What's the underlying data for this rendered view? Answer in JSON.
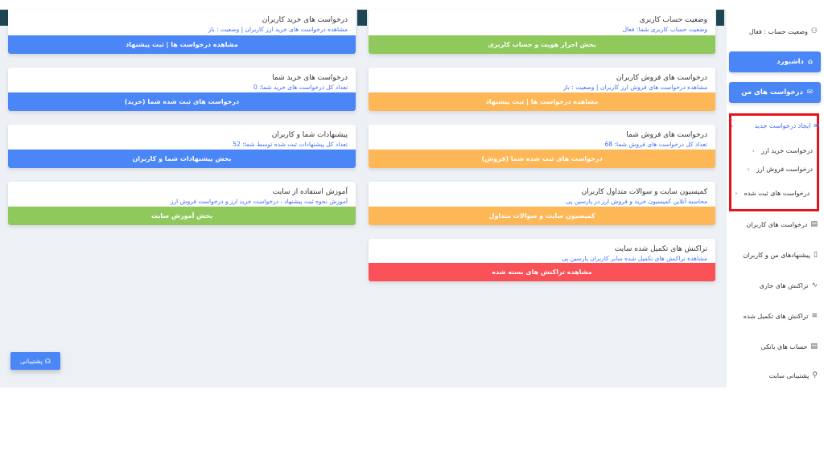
{
  "sidebar": {
    "account_status": "وضعیت حساب : فعال",
    "dashboard": "داشبورد",
    "my_requests": "درخواست های من",
    "new_request": "ایجاد درخواست جدید",
    "buy_request": "درخواست خرید ارز",
    "sell_request": "درخواست فروش ارز",
    "registered_requests": "درخواست های ثبت شده",
    "items": [
      {
        "label": "درخواست های کاربران",
        "icon": "document-icon"
      },
      {
        "label": "پیشنهادهای من و کاربران",
        "icon": "file-icon"
      },
      {
        "label": "تراکنش های جاری",
        "icon": "activity-icon"
      },
      {
        "label": "تراکنش های تکمیل شده",
        "icon": "list-icon"
      },
      {
        "label": "حساب های بانکی",
        "icon": "bank-icon"
      },
      {
        "label": "پشتیبانی سایت",
        "icon": "user-icon"
      }
    ]
  },
  "cards_right": [
    {
      "title": "وضعیت حساب کاربری",
      "subtitle": "وضعیت حساب کاربری شما: فعال",
      "button": "بخش احراز هویت و حساب کاربری",
      "color": "#8fc95b"
    },
    {
      "title": "درخواست های فروش کاربران",
      "subtitle": "مشاهده درخواست های فروش ارز کاربران | وضعیت : باز",
      "button": "مشاهده درخواست ها | ثبت پیشنهاد",
      "color": "#fdb756"
    },
    {
      "title": "درخواست های فروش شما",
      "subtitle": "تعداد کل درخواست های فروش شما: 68",
      "button": "درخواست های ثبت شده شما (فروش)",
      "color": "#fdb756"
    },
    {
      "title": "کمیسیون سایت و سوالات متداول کاربران",
      "subtitle": "محاسبه آنلاین کمیسیون خرید و فروش ارز در پارسین پی",
      "button": "کمیسیون سایت و سوالات متداول",
      "color": "#fdb756"
    },
    {
      "title": "تراکنش های تکمیل شده سایت",
      "subtitle": "مشاهده تراکنش های تکمیل شده سایر کاربران پارسین پی",
      "button": "مشاهده تراکنش های بسته شده",
      "color": "#fa5057"
    }
  ],
  "cards_left": [
    {
      "title": "درخواست های خرید کاربران",
      "subtitle": "مشاهده درخواست های خرید ارز کاربران | وضعیت : باز",
      "button": "مشاهده درخواست ها | ثبت پیشنهاد",
      "color": "#4b86f7"
    },
    {
      "title": "درخواست های خرید شما",
      "subtitle": "تعداد کل درخواست های خرید شما: 0",
      "button": "درخواست های ثبت شده شما (خرید)",
      "color": "#4b86f7"
    },
    {
      "title": "پیشنهادات شما و کاربران",
      "subtitle": "تعداد کل پیشنهادات ثبت شده توسط شما: 52",
      "button": "بخش پیشنهادات شما و کاربران",
      "color": "#4b86f7"
    },
    {
      "title": "آموزش استفاده از سایت",
      "subtitle": "آموزش نحوه ثبت پیشنهاد ، درخواست خرید ارز و درخواست فروش ارز",
      "button": "بخش آموزش سایت",
      "color": "#8fc95b"
    }
  ],
  "support_button": "پشتیبانی"
}
